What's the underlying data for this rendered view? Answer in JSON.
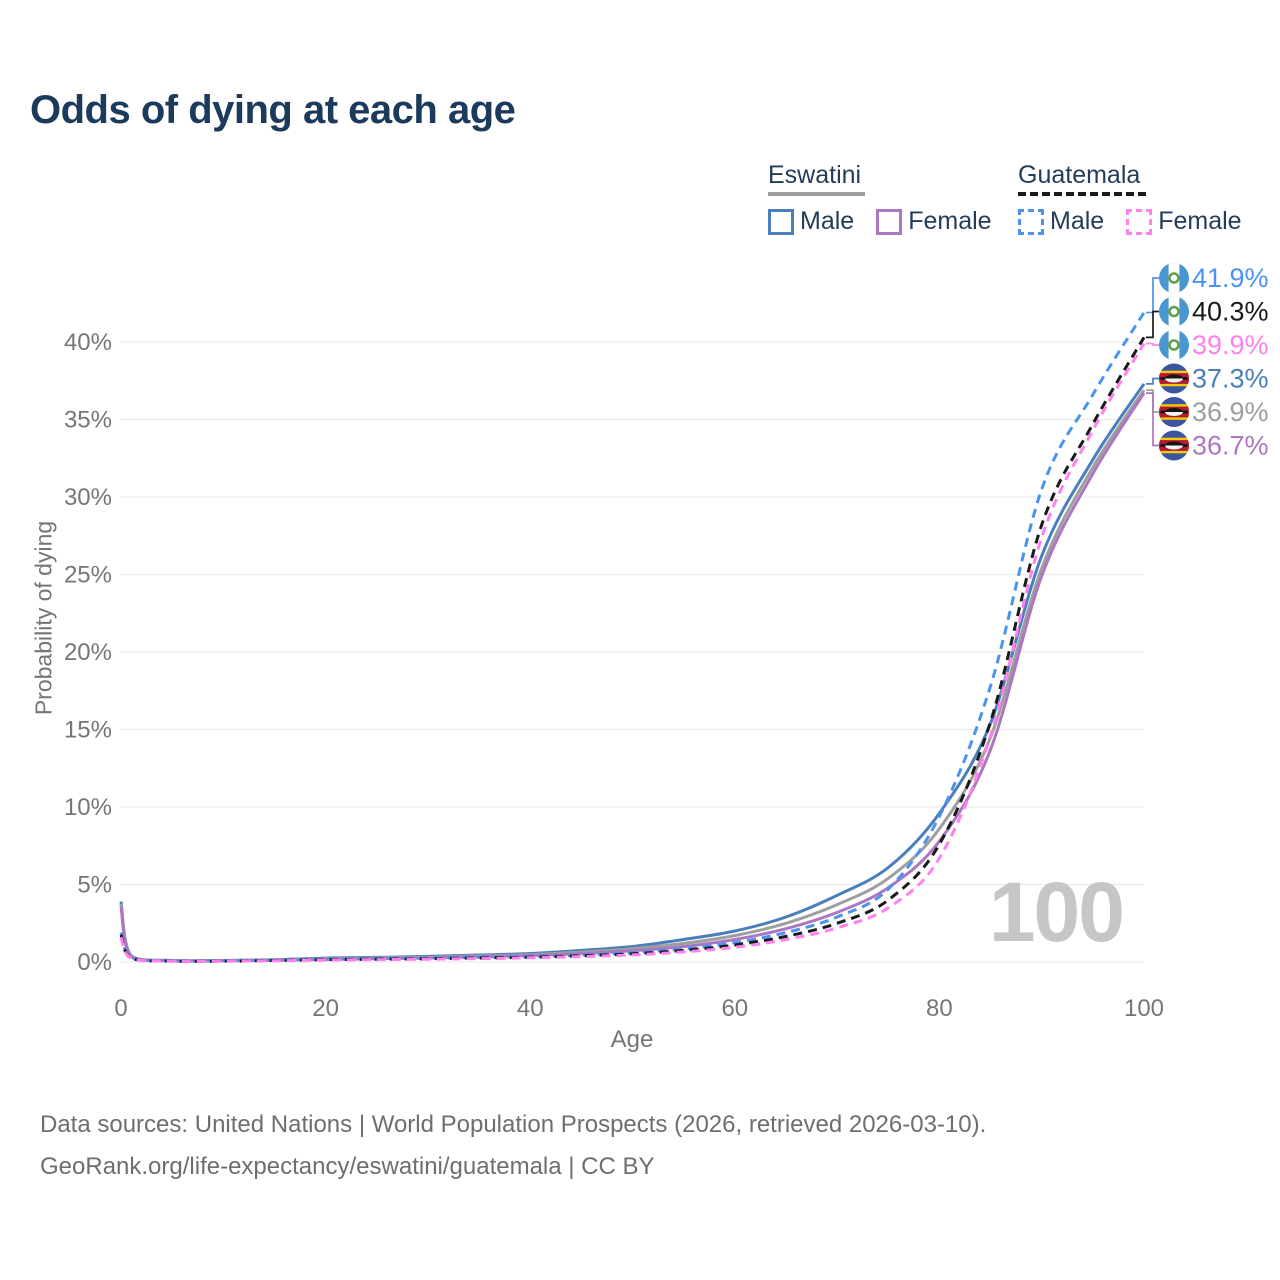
{
  "title": "Odds of dying at each age",
  "legend": {
    "groups": [
      {
        "label": "Eswatini",
        "line_style": "solid",
        "line_color": "#9e9e9e",
        "items": [
          {
            "label": "Male",
            "swatch_color": "#4a7ebc",
            "dashed": false
          },
          {
            "label": "Female",
            "swatch_color": "#ad76c2",
            "dashed": false
          }
        ]
      },
      {
        "label": "Guatemala",
        "line_style": "dashed",
        "line_color": "#1a1a1a",
        "items": [
          {
            "label": "Male",
            "swatch_color": "#4b93f0",
            "dashed": true
          },
          {
            "label": "Female",
            "swatch_color": "#ff80ef",
            "dashed": true
          }
        ]
      }
    ]
  },
  "chart_data": {
    "type": "line",
    "title": "Odds of dying at each age",
    "xlabel": "Age",
    "ylabel": "Probability of dying",
    "xlim": [
      0,
      100
    ],
    "ylim": [
      0,
      44
    ],
    "grid": true,
    "legend_position": "top-right",
    "watermark": "100",
    "x_ticks": [
      {
        "value": 0,
        "label": "0"
      },
      {
        "value": 20,
        "label": "20"
      },
      {
        "value": 40,
        "label": "40"
      },
      {
        "value": 60,
        "label": "60"
      },
      {
        "value": 80,
        "label": "80"
      },
      {
        "value": 100,
        "label": "100"
      }
    ],
    "y_ticks": [
      {
        "value": 0,
        "label": "0%"
      },
      {
        "value": 5,
        "label": "5%"
      },
      {
        "value": 10,
        "label": "10%"
      },
      {
        "value": 15,
        "label": "15%"
      },
      {
        "value": 20,
        "label": "20%"
      },
      {
        "value": 25,
        "label": "25%"
      },
      {
        "value": 30,
        "label": "30%"
      },
      {
        "value": 35,
        "label": "35%"
      },
      {
        "value": 40,
        "label": "40%"
      }
    ],
    "ages": [
      0,
      1,
      5,
      10,
      15,
      20,
      25,
      30,
      35,
      40,
      45,
      50,
      55,
      60,
      65,
      70,
      75,
      80,
      85,
      90,
      95,
      100
    ],
    "series": [
      {
        "name": "Eswatini Male",
        "country": "Eswatini",
        "sex": "male",
        "color": "#4a7ebc",
        "dashed": false,
        "flag": "eswatini",
        "end_label": "37.3%",
        "values": [
          3.9,
          0.4,
          0.1,
          0.1,
          0.15,
          0.25,
          0.3,
          0.36,
          0.45,
          0.55,
          0.75,
          1.0,
          1.45,
          2.0,
          2.9,
          4.3,
          6.1,
          9.6,
          15.4,
          26.2,
          32.4,
          37.3
        ]
      },
      {
        "name": "Eswatini Both sexes",
        "country": "Eswatini",
        "sex": "both",
        "color": "#9e9e9e",
        "dashed": false,
        "flag": "eswatini",
        "end_label": "36.9%",
        "values": [
          3.75,
          0.37,
          0.09,
          0.09,
          0.13,
          0.2,
          0.26,
          0.31,
          0.39,
          0.48,
          0.64,
          0.86,
          1.2,
          1.7,
          2.5,
          3.7,
          5.4,
          8.6,
          14.5,
          25.4,
          31.9,
          36.9
        ]
      },
      {
        "name": "Eswatini Female",
        "country": "Eswatini",
        "sex": "female",
        "color": "#ad76c2",
        "dashed": false,
        "flag": "eswatini",
        "end_label": "36.7%",
        "values": [
          3.55,
          0.34,
          0.08,
          0.08,
          0.11,
          0.16,
          0.21,
          0.26,
          0.33,
          0.42,
          0.54,
          0.72,
          1.0,
          1.45,
          2.15,
          3.2,
          4.8,
          7.8,
          13.7,
          24.9,
          31.5,
          36.7
        ]
      },
      {
        "name": "Guatemala Male",
        "country": "Guatemala",
        "sex": "male",
        "color": "#4b93f0",
        "dashed": true,
        "flag": "guatemala",
        "end_label": "41.9%",
        "values": [
          1.9,
          0.28,
          0.07,
          0.07,
          0.12,
          0.18,
          0.22,
          0.25,
          0.3,
          0.35,
          0.45,
          0.6,
          0.85,
          1.25,
          1.9,
          2.9,
          4.7,
          9.4,
          17.8,
          30.5,
          36.6,
          41.9
        ]
      },
      {
        "name": "Guatemala Both sexes",
        "country": "Guatemala",
        "sex": "both",
        "color": "#1a1a1a",
        "dashed": true,
        "flag": "guatemala",
        "end_label": "40.3%",
        "values": [
          1.75,
          0.26,
          0.06,
          0.06,
          0.1,
          0.15,
          0.18,
          0.21,
          0.26,
          0.31,
          0.4,
          0.53,
          0.75,
          1.1,
          1.65,
          2.5,
          4.0,
          7.6,
          15.5,
          28.2,
          34.7,
          40.3
        ]
      },
      {
        "name": "Guatemala Female",
        "country": "Guatemala",
        "sex": "female",
        "color": "#ff80ef",
        "dashed": true,
        "flag": "guatemala",
        "end_label": "39.9%",
        "values": [
          1.6,
          0.24,
          0.05,
          0.05,
          0.08,
          0.12,
          0.15,
          0.18,
          0.22,
          0.27,
          0.35,
          0.46,
          0.65,
          0.95,
          1.45,
          2.2,
          3.5,
          6.7,
          14.6,
          27.4,
          34.3,
          39.9
        ]
      }
    ]
  },
  "footer": {
    "line1": "Data sources: United Nations | World Population Prospects (2026, retrieved 2026-03-10).",
    "line2": "GeoRank.org/life-expectancy/eswatini/guatemala | CC BY"
  }
}
